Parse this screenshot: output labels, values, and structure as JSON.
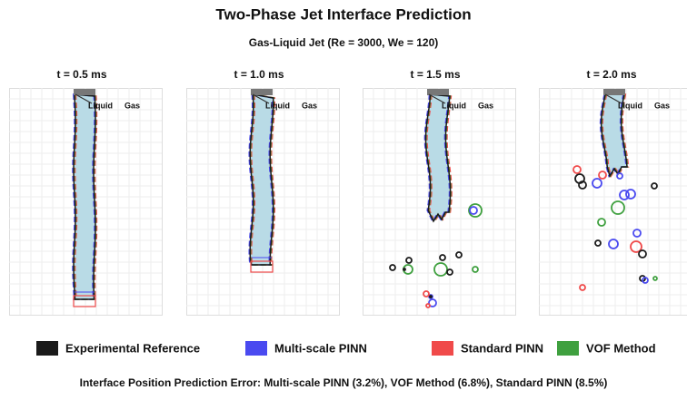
{
  "title": "Two-Phase Jet Interface Prediction",
  "subtitle": "Gas-Liquid Jet (Re = 3000, We = 120)",
  "panels": [
    {
      "title": "t = 0.5 ms",
      "liquid": "Liquid",
      "gas": "Gas"
    },
    {
      "title": "t = 1.0 ms",
      "liquid": "Liquid",
      "gas": "Gas"
    },
    {
      "title": "t = 1.5 ms",
      "liquid": "Liquid",
      "gas": "Gas"
    },
    {
      "title": "t = 2.0 ms",
      "liquid": "Liquid",
      "gas": "Gas"
    }
  ],
  "legend": [
    {
      "name": "Experimental Reference",
      "color": "#1a1a1a"
    },
    {
      "name": "Multi-scale PINN",
      "color": "#4a4af0"
    },
    {
      "name": "Standard PINN",
      "color": "#f04a4a"
    },
    {
      "name": "VOF Method",
      "color": "#3fa03f"
    }
  ],
  "footer": "Interface Position Prediction Error: Multi-scale PINN (3.2%), VOF Method (6.8%), Standard PINN (8.5%)"
}
